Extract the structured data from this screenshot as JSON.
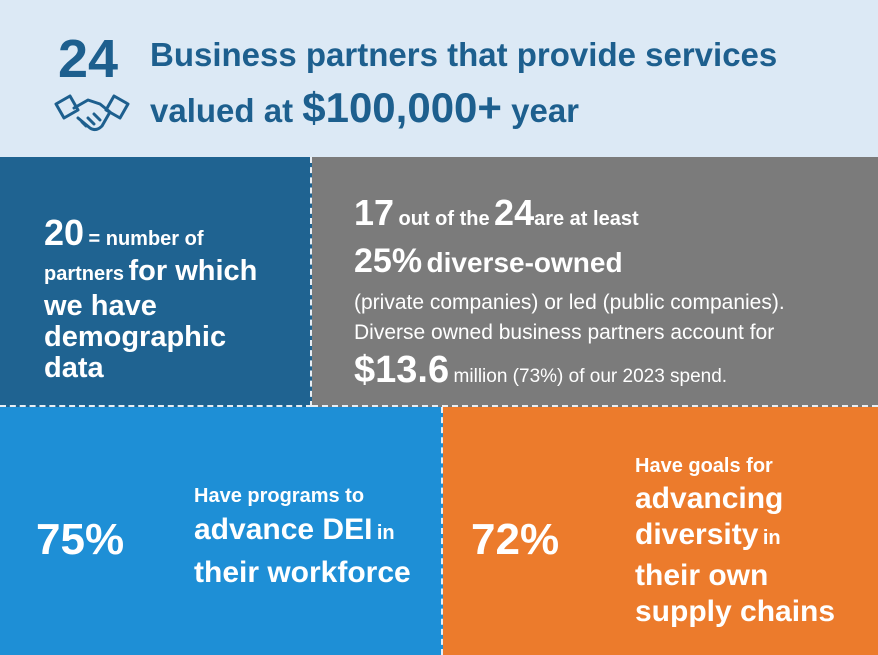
{
  "header": {
    "number": "24",
    "line1": "Business partners that provide services",
    "line2_pre": "valued at",
    "line2_amount": "$100,000+",
    "line2_post": "year"
  },
  "partners_data": {
    "number": "20",
    "equals_text": "= number of",
    "partners": "partners",
    "for_which": "for which",
    "lines": [
      "we have",
      "demographic",
      "data"
    ]
  },
  "diverse": {
    "count": "17",
    "out_of": "out of the",
    "total": "24",
    "at_least": "are at least",
    "percent": "25%",
    "diverse_owned": "diverse-owned",
    "lines": [
      "(private companies) or led (public companies).",
      "Diverse owned business partners account for"
    ],
    "amount": "$13.6",
    "amount_text": "million (73%) of our 2023 spend."
  },
  "dei_programs": {
    "percent": "75%",
    "lines": [
      "Have programs to",
      "their workforce"
    ],
    "big": "advance DEI",
    "small": "in"
  },
  "supply_chain": {
    "percent": "72%",
    "lines": [
      "Have goals for",
      "advancing",
      "their own",
      "supply chains"
    ],
    "big": "diversity",
    "small": "in"
  }
}
